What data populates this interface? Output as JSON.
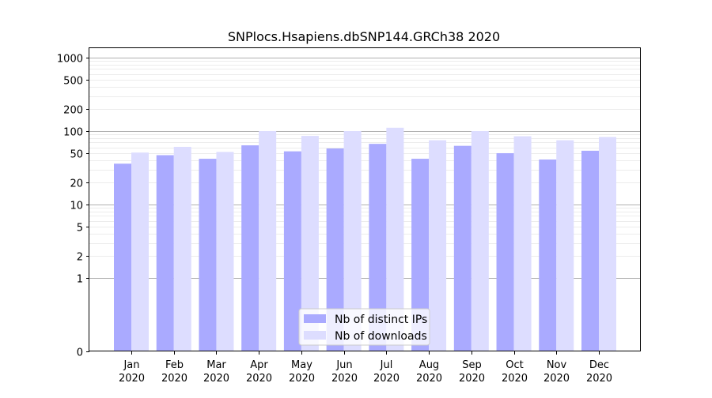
{
  "chart_data": {
    "type": "bar",
    "title": "SNPlocs.Hsapiens.dbSNP144.GRCh38 2020",
    "xlabel": "",
    "ylabel": "",
    "y_scale": "symlog",
    "ylim": [
      0,
      1300
    ],
    "y_ticks": [
      {
        "value": 0,
        "label": "0"
      },
      {
        "value": 1,
        "label": "1"
      },
      {
        "value": 2,
        "label": "2"
      },
      {
        "value": 5,
        "label": "5"
      },
      {
        "value": 10,
        "label": "10"
      },
      {
        "value": 20,
        "label": "20"
      },
      {
        "value": 50,
        "label": "50"
      },
      {
        "value": 100,
        "label": "100"
      },
      {
        "value": 200,
        "label": "200"
      },
      {
        "value": 500,
        "label": "500"
      },
      {
        "value": 1000,
        "label": "1000"
      }
    ],
    "grid": true,
    "legend_position": "bottom-center",
    "categories": [
      {
        "month": "Jan",
        "year": "2020"
      },
      {
        "month": "Feb",
        "year": "2020"
      },
      {
        "month": "Mar",
        "year": "2020"
      },
      {
        "month": "Apr",
        "year": "2020"
      },
      {
        "month": "May",
        "year": "2020"
      },
      {
        "month": "Jun",
        "year": "2020"
      },
      {
        "month": "Jul",
        "year": "2020"
      },
      {
        "month": "Aug",
        "year": "2020"
      },
      {
        "month": "Sep",
        "year": "2020"
      },
      {
        "month": "Oct",
        "year": "2020"
      },
      {
        "month": "Nov",
        "year": "2020"
      },
      {
        "month": "Dec",
        "year": "2020"
      }
    ],
    "series": [
      {
        "name": "Nb of distinct IPs",
        "color": "#aaaaff",
        "values": [
          36,
          47,
          42,
          64,
          53,
          58,
          67,
          42,
          63,
          50,
          41,
          54
        ]
      },
      {
        "name": "Nb of downloads",
        "color": "#ddddff",
        "values": [
          51,
          61,
          52,
          100,
          86,
          100,
          111,
          75,
          100,
          85,
          75,
          83
        ]
      }
    ]
  }
}
